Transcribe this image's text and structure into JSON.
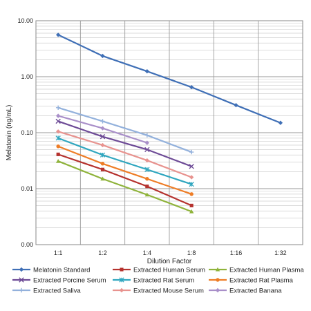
{
  "chart_data": {
    "type": "line",
    "xlabel": "Dilution Factor",
    "ylabel": "Melatonin (ng/mL)",
    "y_scale": "log",
    "categories": [
      "1:1",
      "1:2",
      "1:4",
      "1:8",
      "1:16",
      "1:32"
    ],
    "y_ticks": [
      {
        "label": "10.00",
        "value": 10
      },
      {
        "label": "1.00",
        "value": 1
      },
      {
        "label": "0.10",
        "value": 0.1
      },
      {
        "label": "0.01",
        "value": 0.01
      },
      {
        "label": "0.00",
        "value": 0.001
      }
    ],
    "ylim": [
      0.001,
      10
    ],
    "grid": true,
    "legend_position": "bottom",
    "series": [
      {
        "name": "Melatonin Standard",
        "color": "#3f6fb6",
        "marker": "diamond",
        "values": [
          5.6,
          2.35,
          1.25,
          0.65,
          0.31,
          0.15
        ]
      },
      {
        "name": "Extracted Human Serum",
        "color": "#b5322e",
        "marker": "square",
        "values": [
          0.041,
          0.022,
          0.011,
          0.005,
          null,
          null
        ]
      },
      {
        "name": "Extracted Human Plasma",
        "color": "#8fb33b",
        "marker": "triangle",
        "values": [
          0.031,
          0.015,
          0.0078,
          0.0039,
          null,
          null
        ]
      },
      {
        "name": "Extracted Porcine Serum",
        "color": "#6d4a96",
        "marker": "x",
        "values": [
          0.16,
          0.085,
          0.05,
          0.025,
          null,
          null
        ]
      },
      {
        "name": "Extracted Rat Serum",
        "color": "#2fa6bf",
        "marker": "star",
        "values": [
          0.08,
          0.04,
          0.022,
          0.012,
          null,
          null
        ]
      },
      {
        "name": "Extracted Rat Plasma",
        "color": "#ee7d26",
        "marker": "circle",
        "values": [
          0.057,
          0.028,
          0.015,
          0.008,
          null,
          null
        ]
      },
      {
        "name": "Extracted Saliva",
        "color": "#93b1dc",
        "marker": "plus",
        "values": [
          0.28,
          0.16,
          0.09,
          0.045,
          null,
          null
        ]
      },
      {
        "name": "Extracted Mouse Serum",
        "color": "#e8938f",
        "marker": "diamond",
        "values": [
          0.105,
          0.06,
          0.032,
          0.016,
          null,
          null
        ]
      },
      {
        "name": "Extracted Banana",
        "color": "#a98fc9",
        "marker": "diamond",
        "values": [
          0.2,
          0.12,
          0.066,
          null,
          null,
          null
        ]
      }
    ]
  }
}
